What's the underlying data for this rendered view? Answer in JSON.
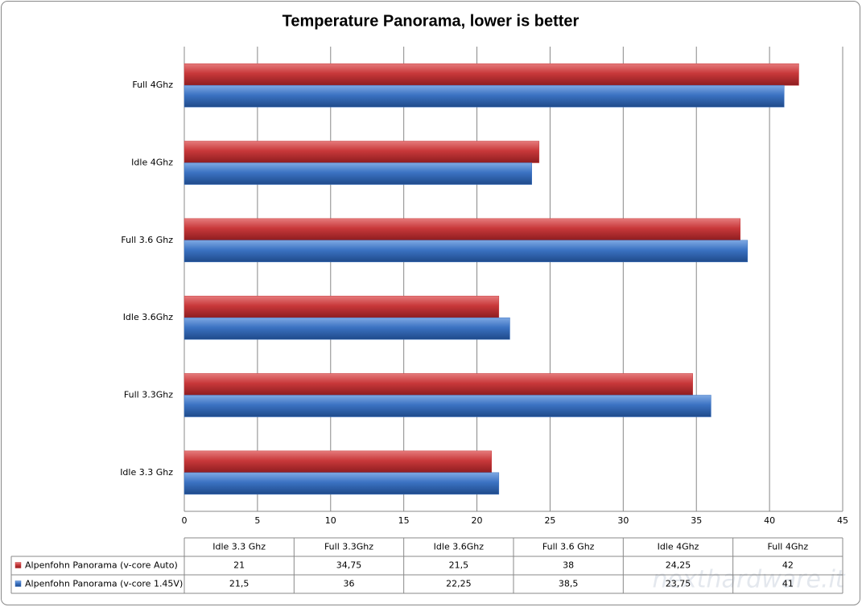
{
  "chart_data": {
    "type": "bar",
    "orientation": "horizontal",
    "title": "Temperature Panorama, lower is better",
    "categories": [
      "Idle 3.3 Ghz",
      "Full 3.3Ghz",
      "Idle 3.6Ghz",
      "Full 3.6 Ghz",
      "Idle 4Ghz",
      "Full 4Ghz"
    ],
    "series": [
      {
        "name": "Alpenfohn Panorama (v-core Auto)",
        "color": "#c8383a",
        "values": [
          21,
          34.75,
          21.5,
          38,
          24.25,
          42
        ],
        "value_labels": [
          "21",
          "34,75",
          "21,5",
          "38",
          "24,25",
          "42"
        ]
      },
      {
        "name": "Alpenfohn Panorama (v-core 1.45V)",
        "color": "#3b72c2",
        "values": [
          21.5,
          36,
          22.25,
          38.5,
          23.75,
          41
        ],
        "value_labels": [
          "21,5",
          "36",
          "22,25",
          "38,5",
          "23,75",
          "41"
        ]
      }
    ],
    "xlim": [
      0,
      45
    ],
    "xticks": [
      0,
      5,
      10,
      15,
      20,
      25,
      30,
      35,
      40,
      45
    ],
    "grid": true,
    "watermark": "nexthardware.it"
  }
}
